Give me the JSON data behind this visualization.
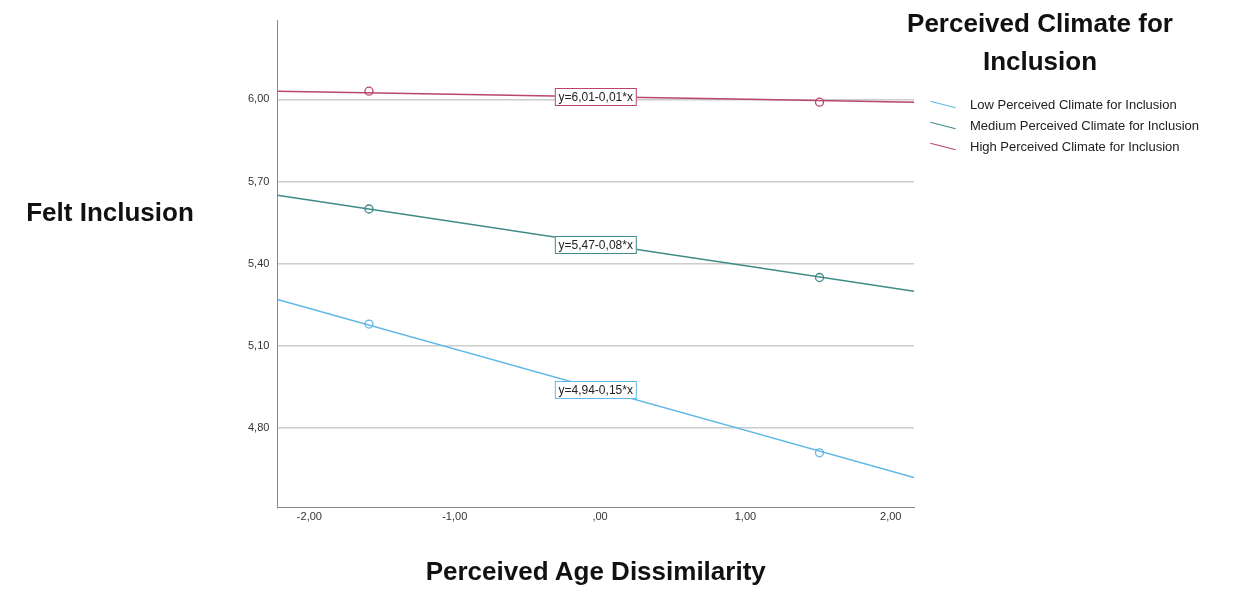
{
  "chart_data": {
    "type": "line",
    "xlabel": "Perceived Age Dissimilarity",
    "ylabel": "Felt Inclusion",
    "legend_title": "Perceived Climate for Inclusion",
    "xlim": [
      -2.22,
      2.16
    ],
    "ylim": [
      4.51,
      6.29
    ],
    "xticks": [
      {
        "value": -2,
        "label": "-2,00"
      },
      {
        "value": -1,
        "label": "-1,00"
      },
      {
        "value": 0,
        "label": ",00"
      },
      {
        "value": 1,
        "label": "1,00"
      },
      {
        "value": 2,
        "label": "2,00"
      }
    ],
    "yticks": [
      {
        "value": 4.8,
        "label": "4,80"
      },
      {
        "value": 5.1,
        "label": "5,10"
      },
      {
        "value": 5.4,
        "label": "5,40"
      },
      {
        "value": 5.7,
        "label": "5,70"
      },
      {
        "value": 6.0,
        "label": "6,00"
      }
    ],
    "grid": "y",
    "legend": "top right",
    "line_style": "solid",
    "series": [
      {
        "name": "Low Perceived Climate for Inclusion",
        "color": "#5fb8e6",
        "x": [
          -2.22,
          2.16
        ],
        "values": [
          5.27,
          4.62
        ],
        "marker": "none"
      },
      {
        "name": "Medium Perceived Climate for Inclusion",
        "color": "#3d8a86",
        "x": [
          -2.22,
          2.16
        ],
        "values": [
          5.65,
          5.3
        ],
        "marker": "none"
      },
      {
        "name": "High Perceived Climate for Inclusion",
        "color": "#b8466e",
        "x": [
          -2.22,
          2.16
        ],
        "values": [
          6.03,
          5.99
        ],
        "marker": "none"
      },
      {
        "type": "scatter",
        "color": "#5fb8e6",
        "x": [
          -1.59,
          1.51
        ],
        "values": [
          5.18,
          4.71
        ],
        "marker": "circle"
      },
      {
        "type": "scatter",
        "color": "#3d8a86",
        "x": [
          -1.59,
          1.51
        ],
        "values": [
          5.6,
          5.35
        ],
        "marker": "circle"
      },
      {
        "type": "scatter",
        "color": "#b8466e",
        "x": [
          -1.59,
          1.51
        ],
        "values": [
          6.03,
          5.99
        ],
        "marker": "circle"
      }
    ],
    "annotations": [
      {
        "text": "y=4,94-0,15*x",
        "y": 4.94
      },
      {
        "text": "y=5,47-0,08*x",
        "y": 5.47
      },
      {
        "text": "y=6,01-0,01*x",
        "y": 6.01
      }
    ]
  }
}
